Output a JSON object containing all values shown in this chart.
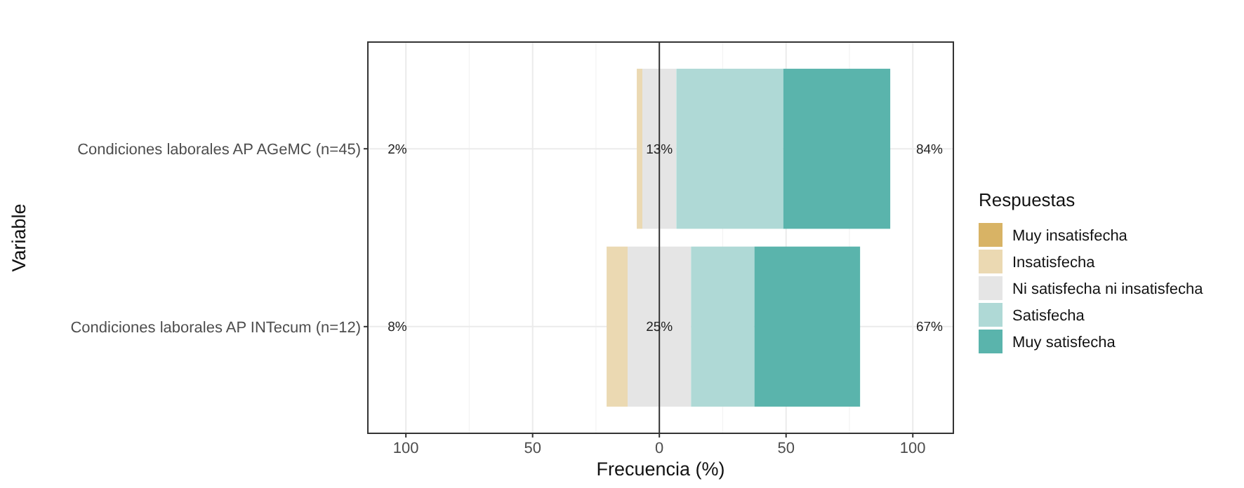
{
  "chart_data": {
    "type": "bar",
    "orientation": "horizontal",
    "xlabel": "Frecuencia (%)",
    "ylabel": "Variable",
    "legend_title": "Respuestas",
    "legend": "right",
    "grid": true,
    "categories": [
      "Condiciones laborales AP AGeMC (n=45)",
      "Condiciones laborales AP INTecum (n=12)"
    ],
    "xlim": [
      -115,
      116
    ],
    "xticks": [
      {
        "value": -100,
        "label": "100"
      },
      {
        "value": -50,
        "label": "50"
      },
      0,
      50,
      100
    ],
    "series": [
      {
        "name": "Muy insatisfecha",
        "color": "#d8b365",
        "values": [
          0,
          0
        ]
      },
      {
        "name": "Insatisfecha",
        "color": "#ebd9b2",
        "base": [
          -8.9,
          -20.8
        ],
        "values": [
          2.2,
          8.3
        ]
      },
      {
        "name": "Ni satisfecha ni insatisfecha",
        "color": "#e5e5e5",
        "base": [
          -6.7,
          -12.5
        ],
        "values": [
          13.3,
          25
        ]
      },
      {
        "name": "Satisfecha",
        "color": "#afd9d6",
        "base": [
          6.7,
          12.5
        ],
        "values": [
          42.2,
          25
        ]
      },
      {
        "name": "Muy satisfecha",
        "color": "#5ab4ac",
        "base": [
          48.9,
          37.5
        ],
        "values": [
          42.2,
          41.7
        ]
      }
    ],
    "ref_lines": [
      {
        "axis": "x",
        "value": 0,
        "color": "#333333"
      }
    ],
    "annotations": [
      "2%",
      "13%",
      "84%",
      "8%",
      "25%",
      "67%"
    ]
  }
}
